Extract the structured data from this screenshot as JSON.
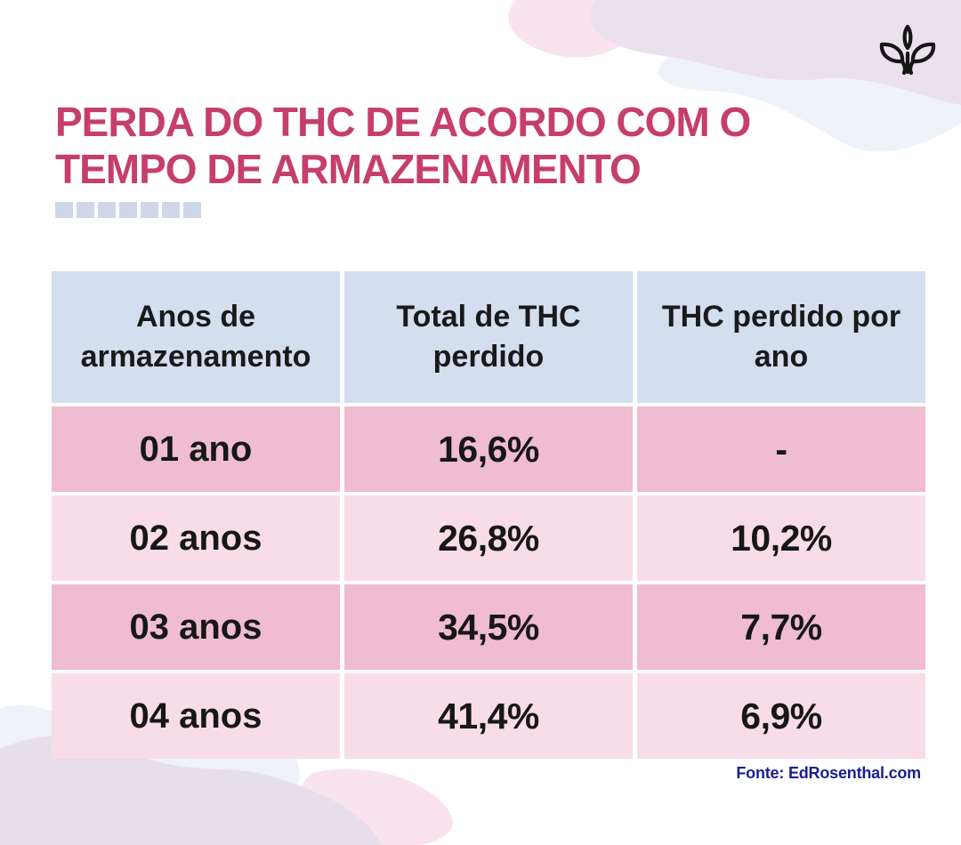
{
  "title": {
    "line1": "PERDA DO THC DE ACORDO COM O",
    "line2": "TEMPO DE ARMAZENAMENTO",
    "color": "#c63e6e"
  },
  "title_underline": {
    "dash_count": 7,
    "color": "#cdd9ea"
  },
  "table": {
    "header_bg": "#d3deee",
    "row_bg_odd": "#efbcd1",
    "row_bg_even": "#f8dde9",
    "headers": [
      "Anos de armazenamento",
      "Total de THC perdido",
      "THC perdido por ano"
    ],
    "rows": [
      {
        "label": "01 ano",
        "total": "16,6%",
        "per_year": "-"
      },
      {
        "label": "02 anos",
        "total": "26,8%",
        "per_year": "10,2%"
      },
      {
        "label": "03 anos",
        "total": "34,5%",
        "per_year": "7,7%"
      },
      {
        "label": "04 anos",
        "total": "41,4%",
        "per_year": "6,9%"
      }
    ]
  },
  "footer": {
    "source": "Fonte: EdRosenthal.com",
    "color": "#1b1e8e"
  },
  "decor": {
    "leaf_icon": "sprout-leaf-icon",
    "blob_lavender": "#eae1ed",
    "blob_lavender_bottom": "#e7deeb",
    "blob_blue_gray": "#eef2f9",
    "blob_pink": "#f8e3ee"
  },
  "chart_data": {
    "type": "table",
    "title": "Perda do THC de acordo com o tempo de armazenamento",
    "columns": [
      "Anos de armazenamento",
      "Total de THC perdido",
      "THC perdido por ano"
    ],
    "rows": [
      [
        "01 ano",
        "16,6%",
        "-"
      ],
      [
        "02 anos",
        "26,8%",
        "10,2%"
      ],
      [
        "03 anos",
        "34,5%",
        "7,7%"
      ],
      [
        "04 anos",
        "41,4%",
        "6,9%"
      ]
    ],
    "numeric": {
      "years_of_storage": [
        1,
        2,
        3,
        4
      ],
      "total_thc_lost_pct": [
        16.6,
        26.8,
        34.5,
        41.4
      ],
      "thc_lost_per_year_pct": [
        null,
        10.2,
        7.7,
        6.9
      ]
    },
    "source": "Fonte: EdRosenthal.com"
  }
}
